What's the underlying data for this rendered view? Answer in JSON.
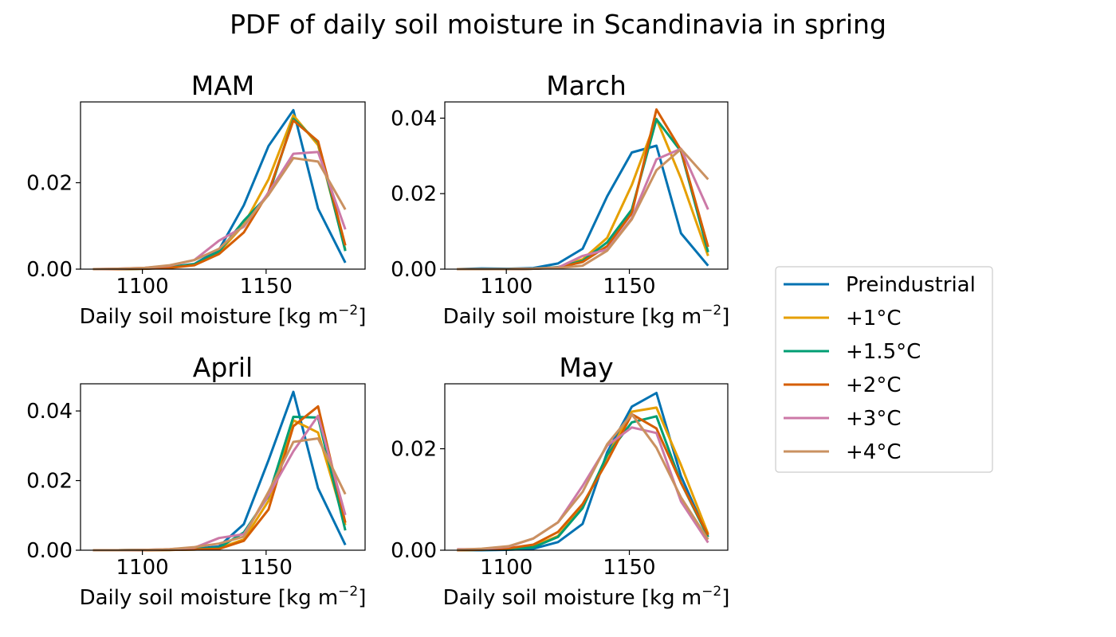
{
  "figure": {
    "suptitle": "PDF of daily soil moisture in Scandinavia in spring"
  },
  "legend": {
    "placement": "right",
    "entries": [
      "Preindustrial",
      "+1°C",
      "+1.5°C",
      "+2°C",
      "+3°C",
      "+4°C"
    ]
  },
  "colors": {
    "Preindustrial": "#0072b2",
    "+1°C": "#e69f00",
    "+1.5°C": "#009e73",
    "+2°C": "#d55e00",
    "+3°C": "#cc79a7",
    "+4°C": "#ca9161"
  },
  "chart_data": [
    {
      "type": "line",
      "title": "MAM",
      "xlabel_prefix": "Daily soil moisture [kg m",
      "xlabel_sup": "−2",
      "xlabel_suffix": "]",
      "ylabel": "",
      "xlim": [
        1075,
        1190
      ],
      "ylim": [
        0,
        0.0387
      ],
      "xticks": [
        1100,
        1150
      ],
      "xtick_labels": [
        "1100",
        "1150"
      ],
      "yticks": [
        0.0,
        0.02
      ],
      "ytick_labels": [
        "0.00",
        "0.02"
      ],
      "grid": false,
      "x": [
        1080,
        1090,
        1101,
        1111,
        1121,
        1131,
        1141,
        1151,
        1161,
        1171,
        1182
      ],
      "series": [
        {
          "name": "Preindustrial",
          "values": [
            0.0,
            0.0,
            0.0001,
            0.0005,
            0.0012,
            0.0045,
            0.0148,
            0.0285,
            0.0368,
            0.014,
            0.0015
          ]
        },
        {
          "name": "+1°C",
          "values": [
            0.0,
            0.0,
            0.0001,
            0.0004,
            0.0011,
            0.0039,
            0.0103,
            0.0208,
            0.0356,
            0.0287,
            0.0045
          ]
        },
        {
          "name": "+1.5°C",
          "values": [
            0.0,
            0.0,
            0.0001,
            0.0004,
            0.0011,
            0.0041,
            0.0112,
            0.0172,
            0.0348,
            0.0294,
            0.0042
          ]
        },
        {
          "name": "+2°C",
          "values": [
            0.0,
            0.0,
            0.0001,
            0.0003,
            0.0009,
            0.0035,
            0.0085,
            0.0178,
            0.0344,
            0.0296,
            0.0055
          ]
        },
        {
          "name": "+3°C",
          "values": [
            0.0,
            0.0001,
            0.0003,
            0.0008,
            0.0021,
            0.0066,
            0.0098,
            0.0177,
            0.0267,
            0.0271,
            0.0092
          ]
        },
        {
          "name": "+4°C",
          "values": [
            0.0,
            0.0001,
            0.0003,
            0.0009,
            0.0021,
            0.0047,
            0.0102,
            0.0172,
            0.0257,
            0.0249,
            0.0138
          ]
        }
      ]
    },
    {
      "type": "line",
      "title": "March",
      "xlabel_prefix": "Daily soil moisture [kg m",
      "xlabel_sup": "−2",
      "xlabel_suffix": "]",
      "ylabel": "",
      "xlim": [
        1075,
        1190
      ],
      "ylim": [
        0,
        0.0443
      ],
      "xticks": [
        1100,
        1150
      ],
      "xtick_labels": [
        "1100",
        "1150"
      ],
      "yticks": [
        0.0,
        0.02,
        0.04
      ],
      "ytick_labels": [
        "0.00",
        "0.02",
        "0.04"
      ],
      "grid": false,
      "x": [
        1080,
        1090,
        1101,
        1111,
        1121,
        1131,
        1141,
        1151,
        1161,
        1171,
        1182
      ],
      "series": [
        {
          "name": "Preindustrial",
          "values": [
            0.0,
            0.0002,
            0.0001,
            0.0003,
            0.0015,
            0.0054,
            0.0193,
            0.0309,
            0.0327,
            0.0095,
            0.0009
          ]
        },
        {
          "name": "+1°C",
          "values": [
            0.0,
            0.0,
            0.0,
            0.0001,
            0.0005,
            0.0026,
            0.0083,
            0.0223,
            0.0398,
            0.024,
            0.0035
          ]
        },
        {
          "name": "+1.5°C",
          "values": [
            0.0,
            0.0,
            0.0,
            0.0001,
            0.0005,
            0.0022,
            0.0071,
            0.0158,
            0.0397,
            0.0312,
            0.0045
          ]
        },
        {
          "name": "+2°C",
          "values": [
            0.0,
            0.0,
            0.0,
            0.0001,
            0.0004,
            0.0019,
            0.0061,
            0.0148,
            0.0423,
            0.0315,
            0.0059
          ]
        },
        {
          "name": "+3°C",
          "values": [
            0.0,
            0.0,
            0.0,
            0.0001,
            0.0004,
            0.0035,
            0.0052,
            0.0135,
            0.0291,
            0.0319,
            0.0158
          ]
        },
        {
          "name": "+4°C",
          "values": [
            0.0,
            0.0,
            0.0,
            0.0001,
            0.0003,
            0.0009,
            0.0049,
            0.0132,
            0.0262,
            0.0318,
            0.0238
          ]
        }
      ]
    },
    {
      "type": "line",
      "title": "April",
      "xlabel_prefix": "Daily soil moisture [kg m",
      "xlabel_sup": "−2",
      "xlabel_suffix": "]",
      "ylabel": "",
      "xlim": [
        1075,
        1190
      ],
      "ylim": [
        0,
        0.0478
      ],
      "xticks": [
        1100,
        1150
      ],
      "xtick_labels": [
        "1100",
        "1150"
      ],
      "yticks": [
        0.0,
        0.02,
        0.04
      ],
      "ytick_labels": [
        "0.00",
        "0.02",
        "0.04"
      ],
      "grid": false,
      "x": [
        1080,
        1090,
        1101,
        1111,
        1121,
        1131,
        1141,
        1151,
        1161,
        1171,
        1182
      ],
      "series": [
        {
          "name": "Preindustrial",
          "values": [
            0.0,
            0.0,
            0.0001,
            0.0002,
            0.0004,
            0.0011,
            0.0075,
            0.0259,
            0.0455,
            0.0178,
            0.0015
          ]
        },
        {
          "name": "+1°C",
          "values": [
            0.0,
            0.0,
            0.0001,
            0.0001,
            0.0002,
            0.0006,
            0.0031,
            0.0142,
            0.0373,
            0.0338,
            0.0072
          ]
        },
        {
          "name": "+1.5°C",
          "values": [
            0.0,
            0.0,
            0.0001,
            0.0001,
            0.0003,
            0.0007,
            0.0051,
            0.0156,
            0.0383,
            0.0381,
            0.0057
          ]
        },
        {
          "name": "+2°C",
          "values": [
            0.0,
            0.0,
            0.0,
            0.0001,
            0.0002,
            0.0004,
            0.0027,
            0.0117,
            0.0356,
            0.0413,
            0.0079
          ]
        },
        {
          "name": "+3°C",
          "values": [
            0.0,
            0.0,
            0.0001,
            0.0003,
            0.0007,
            0.0035,
            0.0046,
            0.0158,
            0.0284,
            0.0386,
            0.0101
          ]
        },
        {
          "name": "+4°C",
          "values": [
            0.0,
            0.0,
            0.0001,
            0.0003,
            0.0009,
            0.0019,
            0.0039,
            0.0168,
            0.0311,
            0.0321,
            0.0161
          ]
        }
      ]
    },
    {
      "type": "line",
      "title": "May",
      "xlabel_prefix": "Daily soil moisture [kg m",
      "xlabel_sup": "−2",
      "xlabel_suffix": "]",
      "ylabel": "",
      "xlim": [
        1075,
        1190
      ],
      "ylim": [
        0,
        0.0328
      ],
      "xticks": [
        1100,
        1150
      ],
      "xtick_labels": [
        "1100",
        "1150"
      ],
      "yticks": [
        0.0,
        0.02
      ],
      "ytick_labels": [
        "0.00",
        "0.02"
      ],
      "grid": false,
      "x": [
        1080,
        1090,
        1101,
        1111,
        1121,
        1131,
        1141,
        1151,
        1161,
        1171,
        1182
      ],
      "series": [
        {
          "name": "Preindustrial",
          "values": [
            0.0,
            0.0,
            0.0001,
            0.0003,
            0.0016,
            0.0052,
            0.0193,
            0.0283,
            0.031,
            0.0146,
            0.0026
          ]
        },
        {
          "name": "+1°C",
          "values": [
            0.0,
            0.0001,
            0.0003,
            0.0008,
            0.0028,
            0.0086,
            0.0186,
            0.0273,
            0.0281,
            0.0168,
            0.0032
          ]
        },
        {
          "name": "+1.5°C",
          "values": [
            0.0,
            0.0001,
            0.0002,
            0.0006,
            0.0026,
            0.0083,
            0.0188,
            0.0252,
            0.0264,
            0.0133,
            0.0026
          ]
        },
        {
          "name": "+2°C",
          "values": [
            0.0,
            0.0001,
            0.0004,
            0.0011,
            0.0036,
            0.0091,
            0.0175,
            0.0268,
            0.024,
            0.0133,
            0.003
          ]
        },
        {
          "name": "+3°C",
          "values": [
            0.0002,
            0.0002,
            0.0007,
            0.0023,
            0.0055,
            0.0127,
            0.0206,
            0.0242,
            0.0231,
            0.0096,
            0.0015
          ]
        },
        {
          "name": "+4°C",
          "values": [
            0.0001,
            0.0003,
            0.0008,
            0.0023,
            0.0055,
            0.0115,
            0.0209,
            0.0268,
            0.0202,
            0.0104,
            0.0021
          ]
        }
      ]
    }
  ]
}
